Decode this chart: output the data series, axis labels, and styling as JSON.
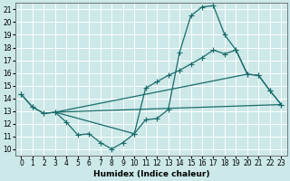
{
  "xlabel": "Humidex (Indice chaleur)",
  "bg_color": "#cce8e8",
  "grid_color": "#ffffff",
  "line_color": "#1a6b6b",
  "xlim": [
    -0.5,
    23.5
  ],
  "ylim": [
    9.5,
    21.5
  ],
  "xticks": [
    0,
    1,
    2,
    3,
    4,
    5,
    6,
    7,
    8,
    9,
    10,
    11,
    12,
    13,
    14,
    15,
    16,
    17,
    18,
    19,
    20,
    21,
    22,
    23
  ],
  "yticks": [
    10,
    11,
    12,
    13,
    14,
    15,
    16,
    17,
    18,
    19,
    20,
    21
  ],
  "curves": [
    {
      "x": [
        0,
        1,
        2,
        3,
        4,
        5,
        6,
        7,
        8,
        9,
        10,
        11,
        12,
        13,
        14,
        15,
        16,
        17,
        18,
        19,
        20,
        21,
        22,
        23
      ],
      "y": [
        14.3,
        13.3,
        12.8,
        12.9,
        12.1,
        11.1,
        11.2,
        10.5,
        10.0,
        10.5,
        11.2,
        12.3,
        12.4,
        13.1,
        17.6,
        20.5,
        21.2,
        21.3,
        19.0,
        17.8,
        15.9,
        15.8,
        14.6,
        13.5
      ],
      "marker": true
    },
    {
      "x": [
        0,
        1,
        2,
        3,
        10,
        11,
        12,
        13,
        14,
        15,
        16,
        17,
        18,
        19,
        20,
        21,
        22,
        23
      ],
      "y": [
        14.3,
        13.3,
        12.8,
        12.9,
        11.2,
        14.8,
        15.3,
        15.8,
        16.2,
        16.7,
        17.2,
        17.8,
        17.5,
        17.8,
        15.9,
        15.8,
        14.6,
        13.5
      ],
      "marker": true
    },
    {
      "x": [
        3,
        20
      ],
      "y": [
        12.9,
        15.9
      ],
      "marker": false
    },
    {
      "x": [
        3,
        23
      ],
      "y": [
        12.9,
        13.5
      ],
      "marker": false
    }
  ]
}
